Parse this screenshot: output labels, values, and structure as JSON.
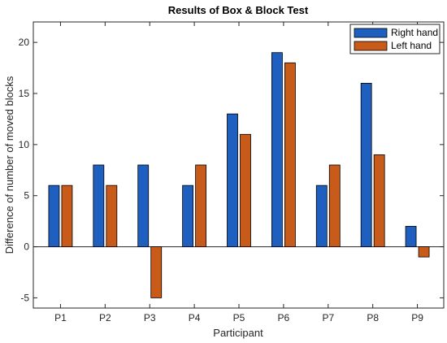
{
  "chart_data": {
    "type": "bar",
    "title": "Results of Box & Block Test",
    "xlabel": "Participant",
    "ylabel": "Difference of number of moved blocks",
    "categories": [
      "P1",
      "P2",
      "P3",
      "P4",
      "P5",
      "P6",
      "P7",
      "P8",
      "P9"
    ],
    "series": [
      {
        "name": "Right hand",
        "color": "#1f5fbf",
        "values": [
          6,
          8,
          8,
          6,
          13,
          19,
          6,
          16,
          2
        ]
      },
      {
        "name": "Left hand",
        "color": "#c85a1a",
        "values": [
          6,
          6,
          -5,
          8,
          11,
          18,
          8,
          9,
          -1
        ]
      }
    ],
    "ylim": [
      -6,
      22
    ],
    "yticks": [
      -5,
      0,
      5,
      10,
      15,
      20
    ],
    "grid": false,
    "legend_position": "top-right",
    "bar_edge_color": "#000000",
    "zero_line": true
  }
}
